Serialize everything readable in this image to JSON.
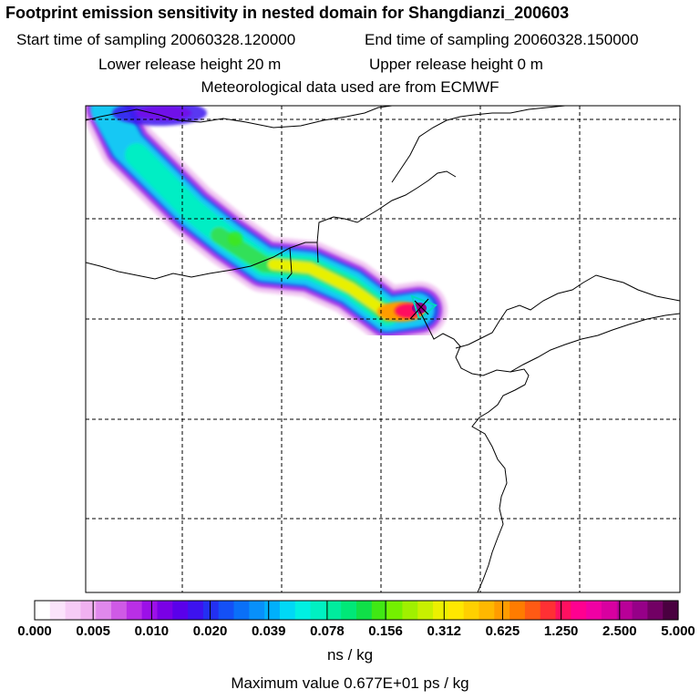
{
  "header": {
    "title": "Footprint emission sensitivity in nested domain for Shangdianzi_200603",
    "start_label": "Start time of sampling 20060328.120000",
    "end_label": "End time of sampling 20060328.150000",
    "lower_label": "Lower release height   20 m",
    "upper_label": "Upper release height    0 m",
    "met_label": "Meteorological data used are from ECMWF"
  },
  "colorbar": {
    "ticks": [
      "0.000",
      "0.005",
      "0.010",
      "0.020",
      "0.039",
      "0.078",
      "0.156",
      "0.312",
      "0.625",
      "1.250",
      "2.500",
      "5.000"
    ],
    "colors": [
      "#ffffff",
      "#fbe3fb",
      "#f6cbf6",
      "#f0b1f0",
      "#e088ec",
      "#cf5ae6",
      "#b92fe6",
      "#9c10e8",
      "#7a00e6",
      "#5a00ea",
      "#3d12ef",
      "#2330f2",
      "#1450f6",
      "#0a70f8",
      "#0890fa",
      "#00b0fb",
      "#00d8f6",
      "#00f0e2",
      "#00f0c2",
      "#00ec9e",
      "#00e878",
      "#10e048",
      "#40e814",
      "#74f000",
      "#a0f000",
      "#c8f000",
      "#ecf000",
      "#ffe800",
      "#ffd000",
      "#ffb800",
      "#ff9c00",
      "#ff7c00",
      "#ff5a14",
      "#ff3034",
      "#ff1060",
      "#ff0090",
      "#f000a4",
      "#d800a0",
      "#b80098",
      "#960088",
      "#720064",
      "#4a0040"
    ],
    "units": "ns / kg",
    "max_value_label": "Maximum value  0.677E+01 ps / kg"
  }
}
